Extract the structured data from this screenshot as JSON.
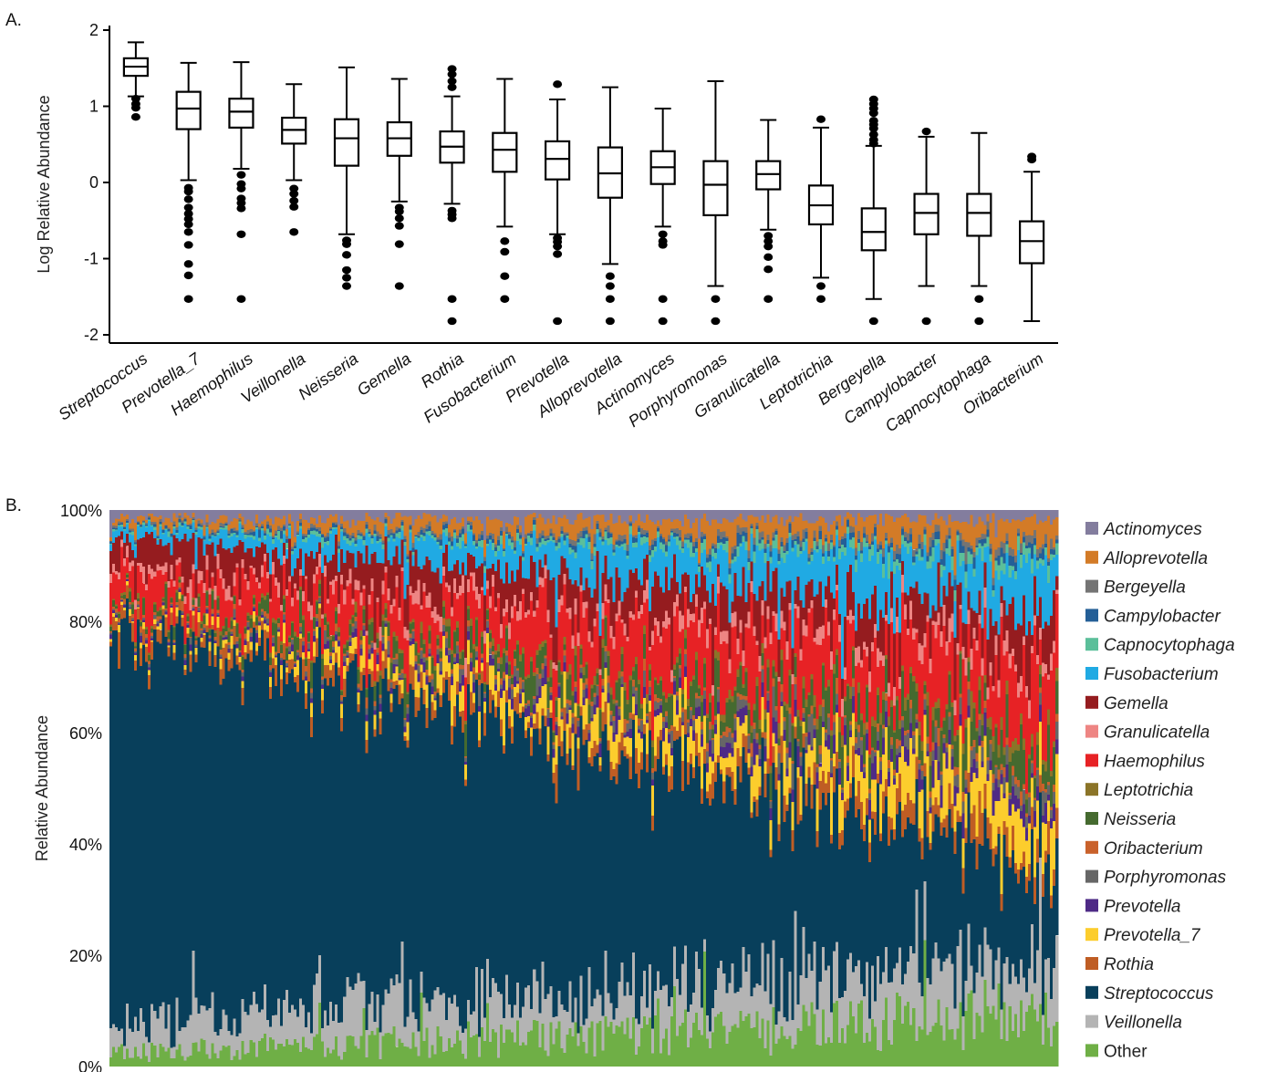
{
  "panel_a_label": "A.",
  "panel_b_label": "B.",
  "chart_data": [
    {
      "type": "box",
      "panel": "A.",
      "ylabel": "Log Relative Abundance",
      "xlabel": "",
      "ylim": [
        -2.1,
        2.1
      ],
      "yticks": [
        -2,
        -1,
        0,
        1,
        2
      ],
      "ytick_labels": [
        "-2",
        "-1",
        "0",
        "1",
        "2"
      ],
      "categories": [
        "Streptococcus",
        "Prevotella_7",
        "Haemophilus",
        "Veillonella",
        "Neisseria",
        "Gemella",
        "Rothia",
        "Fusobacterium",
        "Prevotella",
        "Alloprevotella",
        "Actinomyces",
        "Porphyromonas",
        "Granulicatella",
        "Leptotrichia",
        "Bergeyella",
        "Campylobacter",
        "Capnocytophaga",
        "Oribacterium"
      ],
      "boxes": [
        {
          "min": 1.13,
          "q1": 1.4,
          "median": 1.52,
          "q3": 1.63,
          "max": 1.84,
          "outliers": [
            1.03,
            0.98,
            0.86,
            1.1
          ]
        },
        {
          "min": 0.03,
          "q1": 0.7,
          "median": 0.97,
          "q3": 1.19,
          "max": 1.57,
          "outliers": [
            -0.07,
            -0.12,
            -0.22,
            -0.33,
            -0.41,
            -0.48,
            -0.55,
            -0.65,
            -0.82,
            -1.07,
            -1.22,
            -1.53
          ]
        },
        {
          "min": 0.18,
          "q1": 0.72,
          "median": 0.93,
          "q3": 1.1,
          "max": 1.58,
          "outliers": [
            0.1,
            -0.02,
            -0.08,
            -0.21,
            -0.27,
            -0.34,
            -0.68,
            -1.53
          ]
        },
        {
          "min": 0.03,
          "q1": 0.51,
          "median": 0.69,
          "q3": 0.85,
          "max": 1.29,
          "outliers": [
            -0.08,
            -0.15,
            -0.24,
            -0.32,
            -0.65
          ]
        },
        {
          "min": -0.68,
          "q1": 0.22,
          "median": 0.58,
          "q3": 0.83,
          "max": 1.51,
          "outliers": [
            -0.76,
            -0.81,
            -0.95,
            -1.15,
            -1.25,
            -1.36
          ]
        },
        {
          "min": -0.25,
          "q1": 0.35,
          "median": 0.58,
          "q3": 0.79,
          "max": 1.36,
          "outliers": [
            -0.33,
            -0.38,
            -0.47,
            -0.57,
            -0.81,
            -1.36
          ]
        },
        {
          "min": -0.28,
          "q1": 0.26,
          "median": 0.47,
          "q3": 0.67,
          "max": 1.13,
          "outliers": [
            1.49,
            1.42,
            1.33,
            1.25,
            -0.37,
            -0.42,
            -0.47,
            -1.53,
            -1.82
          ]
        },
        {
          "min": -0.58,
          "q1": 0.14,
          "median": 0.43,
          "q3": 0.65,
          "max": 1.36,
          "outliers": [
            -0.77,
            -0.91,
            -1.23,
            -1.53
          ]
        },
        {
          "min": -0.68,
          "q1": 0.04,
          "median": 0.31,
          "q3": 0.54,
          "max": 1.09,
          "outliers": [
            1.29,
            -0.73,
            -0.78,
            -0.84,
            -0.94,
            -1.82
          ]
        },
        {
          "min": -1.07,
          "q1": -0.2,
          "median": 0.12,
          "q3": 0.46,
          "max": 1.25,
          "outliers": [
            -1.23,
            -1.36,
            -1.53,
            -1.82
          ]
        },
        {
          "min": -0.58,
          "q1": -0.02,
          "median": 0.2,
          "q3": 0.41,
          "max": 0.97,
          "outliers": [
            -0.68,
            -0.77,
            -0.82,
            -1.53,
            -1.82
          ]
        },
        {
          "min": -1.36,
          "q1": -0.43,
          "median": -0.03,
          "q3": 0.28,
          "max": 1.33,
          "outliers": [
            -1.53,
            -1.82
          ]
        },
        {
          "min": -0.62,
          "q1": -0.09,
          "median": 0.11,
          "q3": 0.28,
          "max": 0.82,
          "outliers": [
            -0.7,
            -0.77,
            -0.84,
            -0.98,
            -1.14,
            -1.53
          ]
        },
        {
          "min": -1.25,
          "q1": -0.55,
          "median": -0.3,
          "q3": -0.04,
          "max": 0.72,
          "outliers": [
            0.83,
            -1.36,
            -1.53
          ]
        },
        {
          "min": -1.53,
          "q1": -0.89,
          "median": -0.65,
          "q3": -0.34,
          "max": 0.48,
          "outliers": [
            1.09,
            1.03,
            0.97,
            0.91,
            0.81,
            0.76,
            0.71,
            0.63,
            0.56,
            0.51,
            -1.82
          ]
        },
        {
          "min": -1.36,
          "q1": -0.68,
          "median": -0.4,
          "q3": -0.15,
          "max": 0.6,
          "outliers": [
            0.67,
            -1.82
          ]
        },
        {
          "min": -1.36,
          "q1": -0.7,
          "median": -0.4,
          "q3": -0.15,
          "max": 0.65,
          "outliers": [
            -1.53,
            -1.82
          ]
        },
        {
          "min": -1.82,
          "q1": -1.06,
          "median": -0.77,
          "q3": -0.51,
          "max": 0.14,
          "outliers": [
            0.34,
            0.3
          ]
        }
      ]
    },
    {
      "type": "stacked_bar",
      "panel": "B.",
      "ylabel": "Relative Abundance",
      "xlabel": "",
      "ylim": [
        0,
        100
      ],
      "yticks": [
        0,
        20,
        40,
        60,
        80,
        100
      ],
      "ytick_labels": [
        "0%",
        "20%",
        "40%",
        "60%",
        "80%",
        "100%"
      ],
      "n_samples": 345,
      "stack_order_bottom_to_top": [
        "Other",
        "Veillonella",
        "Streptococcus",
        "Rothia",
        "Prevotella_7",
        "Prevotella",
        "Porphyromonas",
        "Oribacterium",
        "Neisseria",
        "Leptotrichia",
        "Haemophilus",
        "Granulicatella",
        "Gemella",
        "Fusobacterium",
        "Capnocytophaga",
        "Campylobacter",
        "Bergeyella",
        "Alloprevotella",
        "Actinomyces"
      ],
      "sort_note": "Samples ordered by decreasing Streptococcus abundance",
      "trends_percent": {
        "Other": {
          "start": 2.5,
          "end": 8.0
        },
        "Veillonella": {
          "start": 5.5,
          "end": 8.5
        },
        "Streptococcus": {
          "start": 70.0,
          "end": 14.0
        },
        "Rothia": {
          "start": 2.0,
          "end": 3.0
        },
        "Prevotella_7": {
          "start": 0.5,
          "end": 7.0
        },
        "Prevotella": {
          "start": 0.3,
          "end": 2.5
        },
        "Porphyromonas": {
          "start": 0.3,
          "end": 2.0
        },
        "Oribacterium": {
          "start": 0.5,
          "end": 1.0
        },
        "Neisseria": {
          "start": 1.0,
          "end": 5.0
        },
        "Leptotrichia": {
          "start": 0.3,
          "end": 1.5
        },
        "Haemophilus": {
          "start": 5.0,
          "end": 9.0
        },
        "Granulicatella": {
          "start": 1.5,
          "end": 2.0
        },
        "Gemella": {
          "start": 4.5,
          "end": 6.0
        },
        "Fusobacterium": {
          "start": 1.5,
          "end": 7.5
        },
        "Capnocytophaga": {
          "start": 0.3,
          "end": 1.5
        },
        "Campylobacter": {
          "start": 0.3,
          "end": 1.0
        },
        "Bergeyella": {
          "start": 0.3,
          "end": 1.0
        },
        "Alloprevotella": {
          "start": 1.0,
          "end": 3.5
        },
        "Actinomyces": {
          "start": 1.5,
          "end": 1.5
        }
      },
      "legend": [
        {
          "name": "Actinomyces",
          "color": "#837d9e",
          "italic": true
        },
        {
          "name": "Alloprevotella",
          "color": "#d37b27",
          "italic": true
        },
        {
          "name": "Bergeyella",
          "color": "#747474",
          "italic": true
        },
        {
          "name": "Campylobacter",
          "color": "#245f97",
          "italic": true
        },
        {
          "name": "Capnocytophaga",
          "color": "#5bbf9a",
          "italic": true
        },
        {
          "name": "Fusobacterium",
          "color": "#20aae3",
          "italic": true
        },
        {
          "name": "Gemella",
          "color": "#951c1f",
          "italic": true
        },
        {
          "name": "Granulicatella",
          "color": "#ee8583",
          "italic": true
        },
        {
          "name": "Haemophilus",
          "color": "#e72225",
          "italic": true
        },
        {
          "name": "Leptotrichia",
          "color": "#8b7428",
          "italic": true
        },
        {
          "name": "Neisseria",
          "color": "#456a2f",
          "italic": true
        },
        {
          "name": "Oribacterium",
          "color": "#c9612b",
          "italic": true
        },
        {
          "name": "Porphyromonas",
          "color": "#666666",
          "italic": true
        },
        {
          "name": "Prevotella",
          "color": "#4e2a86",
          "italic": true
        },
        {
          "name": "Prevotella_7",
          "color": "#fccd2d",
          "italic": true
        },
        {
          "name": "Rothia",
          "color": "#bf5d24",
          "italic": true
        },
        {
          "name": "Streptococcus",
          "color": "#083f5b",
          "italic": true
        },
        {
          "name": "Veillonella",
          "color": "#b4b4b4",
          "italic": true
        },
        {
          "name": "Other",
          "color": "#6faf46",
          "italic": false
        }
      ],
      "legend_position": "right"
    }
  ]
}
